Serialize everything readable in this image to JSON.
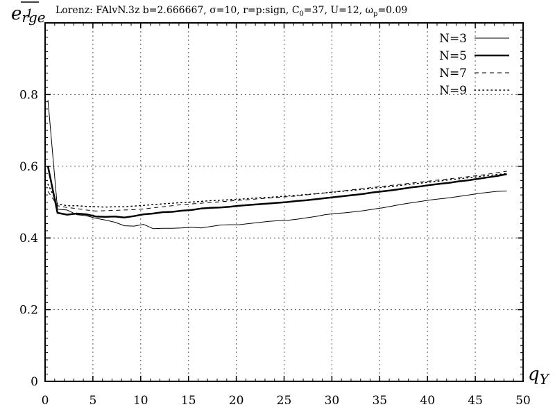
{
  "chart_data": {
    "type": "line",
    "title_prefix": "Lorenz: FAlvN.3z b=2.666667, σ=10, r=p:sign, C",
    "title_c_sub": "0",
    "title_mid": "=37, U=12, ω",
    "title_w_sub": "p",
    "title_suffix": "=0.09",
    "ylabel_main": "e",
    "ylabel_sub": "rge",
    "ylabel_bar": "1",
    "xlabel_main": "q",
    "xlabel_sub": "Y",
    "xlim": [
      0,
      50
    ],
    "ylim": [
      0,
      1
    ],
    "x_ticks": [
      {
        "value": 0,
        "label": "0"
      },
      {
        "value": 5,
        "label": "5"
      },
      {
        "value": 10,
        "label": "10"
      },
      {
        "value": 15,
        "label": "15"
      },
      {
        "value": 20,
        "label": "20"
      },
      {
        "value": 25,
        "label": "25"
      },
      {
        "value": 30,
        "label": "30"
      },
      {
        "value": 35,
        "label": "35"
      },
      {
        "value": 40,
        "label": "40"
      },
      {
        "value": 45,
        "label": "45"
      },
      {
        "value": 50,
        "label": "50"
      }
    ],
    "y_ticks": [
      {
        "value": 0,
        "label": "0"
      },
      {
        "value": 0.2,
        "label": "0.2"
      },
      {
        "value": 0.4,
        "label": "0.4"
      },
      {
        "value": 0.6,
        "label": "0.6"
      },
      {
        "value": 0.8,
        "label": "0.8"
      }
    ],
    "grid": true,
    "legend_position": "top-right",
    "x": [
      0.3,
      1.3,
      2.3,
      3.3,
      4.3,
      5.3,
      6.3,
      7.3,
      8.3,
      9.3,
      10.3,
      11.3,
      12.3,
      13.3,
      14.3,
      15.3,
      16.3,
      17.3,
      18.3,
      19.3,
      20.3,
      21.3,
      22.3,
      23.3,
      24.3,
      25.3,
      26.3,
      27.3,
      28.3,
      29.3,
      30.3,
      31.3,
      32.3,
      33.3,
      34.3,
      35.3,
      36.3,
      37.3,
      38.3,
      39.3,
      40.3,
      41.3,
      42.3,
      43.3,
      44.3,
      45.3,
      46.3,
      47.3,
      48.3
    ],
    "series": [
      {
        "name": "N=3",
        "style": "thin-solid",
        "values": [
          0.785,
          0.48,
          0.478,
          0.465,
          0.462,
          0.455,
          0.45,
          0.444,
          0.434,
          0.433,
          0.438,
          0.426,
          0.427,
          0.427,
          0.428,
          0.43,
          0.428,
          0.432,
          0.436,
          0.437,
          0.437,
          0.44,
          0.443,
          0.446,
          0.448,
          0.449,
          0.452,
          0.456,
          0.46,
          0.465,
          0.468,
          0.47,
          0.473,
          0.476,
          0.48,
          0.484,
          0.489,
          0.494,
          0.498,
          0.502,
          0.506,
          0.509,
          0.512,
          0.516,
          0.52,
          0.524,
          0.527,
          0.53,
          0.531
        ]
      },
      {
        "name": "N=5",
        "style": "thick-solid",
        "values": [
          0.6,
          0.47,
          0.465,
          0.468,
          0.466,
          0.46,
          0.459,
          0.46,
          0.457,
          0.461,
          0.466,
          0.468,
          0.472,
          0.473,
          0.476,
          0.478,
          0.482,
          0.484,
          0.485,
          0.487,
          0.49,
          0.492,
          0.494,
          0.496,
          0.498,
          0.5,
          0.503,
          0.505,
          0.508,
          0.511,
          0.514,
          0.517,
          0.52,
          0.523,
          0.527,
          0.53,
          0.533,
          0.537,
          0.541,
          0.544,
          0.548,
          0.551,
          0.554,
          0.558,
          0.561,
          0.565,
          0.569,
          0.573,
          0.578
        ]
      },
      {
        "name": "N=7",
        "style": "dashed",
        "values": [
          0.53,
          0.49,
          0.485,
          0.482,
          0.478,
          0.475,
          0.476,
          0.477,
          0.478,
          0.479,
          0.481,
          0.484,
          0.487,
          0.49,
          0.493,
          0.495,
          0.497,
          0.499,
          0.501,
          0.503,
          0.505,
          0.507,
          0.509,
          0.511,
          0.513,
          0.515,
          0.517,
          0.52,
          0.523,
          0.526,
          0.529,
          0.532,
          0.535,
          0.538,
          0.541,
          0.544,
          0.547,
          0.55,
          0.553,
          0.556,
          0.559,
          0.562,
          0.565,
          0.568,
          0.571,
          0.574,
          0.578,
          0.582,
          0.586
        ]
      },
      {
        "name": "N=9",
        "style": "dotted",
        "values": [
          0.55,
          0.495,
          0.49,
          0.49,
          0.488,
          0.487,
          0.486,
          0.487,
          0.487,
          0.489,
          0.491,
          0.493,
          0.495,
          0.497,
          0.499,
          0.5,
          0.502,
          0.504,
          0.505,
          0.507,
          0.508,
          0.51,
          0.512,
          0.513,
          0.515,
          0.517,
          0.519,
          0.521,
          0.523,
          0.526,
          0.528,
          0.531,
          0.533,
          0.536,
          0.539,
          0.541,
          0.544,
          0.547,
          0.55,
          0.553,
          0.556,
          0.559,
          0.562,
          0.565,
          0.568,
          0.571,
          0.574,
          0.577,
          0.58
        ]
      }
    ]
  }
}
